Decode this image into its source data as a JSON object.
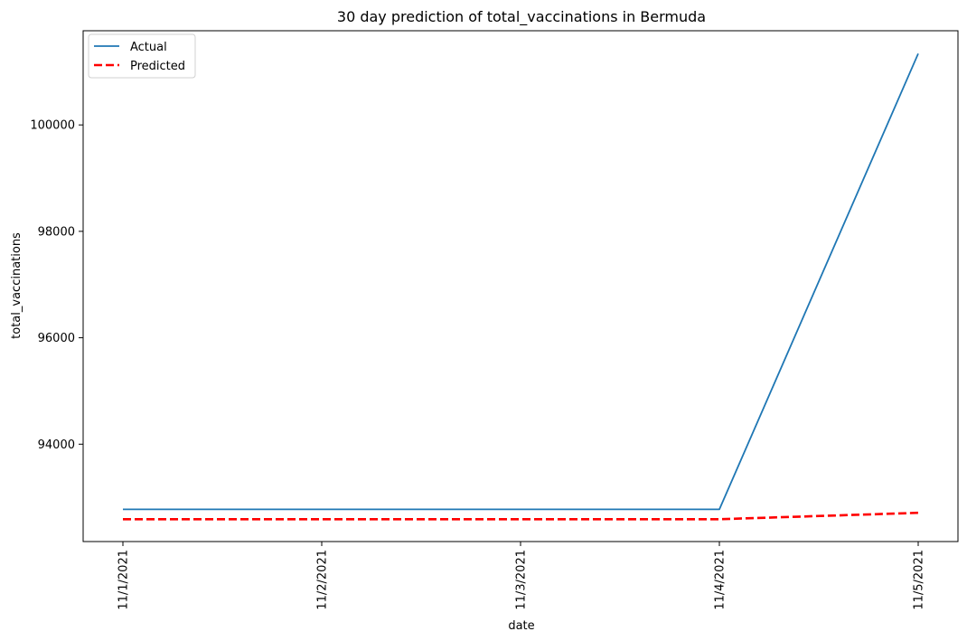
{
  "chart_data": {
    "type": "line",
    "title": "30 day prediction of total_vaccinations in Bermuda",
    "xlabel": "date",
    "ylabel": "total_vaccinations",
    "categories": [
      "11/1/2021",
      "11/2/2021",
      "11/3/2021",
      "11/4/2021",
      "11/5/2021"
    ],
    "ylim": [
      92170,
      101770
    ],
    "yticks": [
      94000,
      96000,
      98000,
      100000
    ],
    "grid": false,
    "legend_position": "top-left",
    "series": [
      {
        "name": "Actual",
        "values": [
          92775,
          92775,
          92775,
          92775,
          101340
        ],
        "color": "#1f77b4",
        "style": "solid"
      },
      {
        "name": "Predicted",
        "values": [
          92590,
          92590,
          92590,
          92590,
          92710
        ],
        "color": "#ff0000",
        "style": "dashed"
      }
    ]
  }
}
